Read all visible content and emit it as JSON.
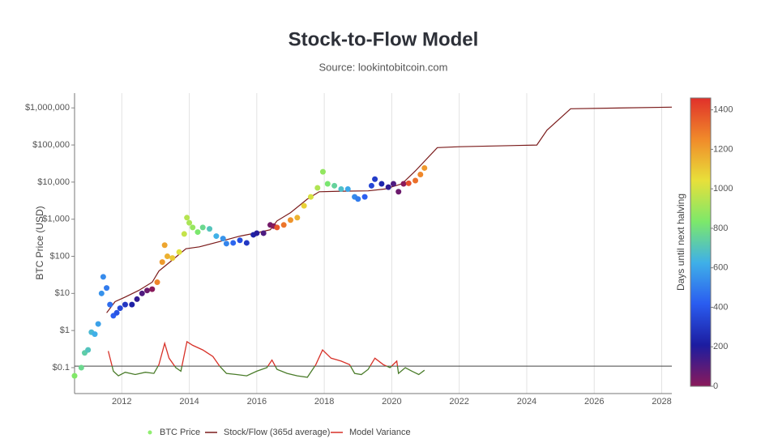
{
  "chart_data": {
    "type": "scatter",
    "title": "Stock-to-Flow Model",
    "subtitle": "Source: lookintobitcoin.com",
    "y_label": "BTC Price (USD)",
    "log_y": true,
    "grid": "x",
    "legend": "bottom",
    "xlim": [
      2010.6,
      2028.3
    ],
    "xticks": [
      2012,
      2014,
      2016,
      2018,
      2020,
      2022,
      2024,
      2026,
      2028
    ],
    "ylim": [
      0.02,
      2500000
    ],
    "yticks": [
      {
        "value": 0.1,
        "label": "$0.1"
      },
      {
        "value": 1,
        "label": "$1"
      },
      {
        "value": 10,
        "label": "$10"
      },
      {
        "value": 100,
        "label": "$100"
      },
      {
        "value": 1000,
        "label": "$1,000"
      },
      {
        "value": 10000,
        "label": "$10,000"
      },
      {
        "value": 100000,
        "label": "$100,000"
      },
      {
        "value": 1000000,
        "label": "$1,000,000"
      }
    ],
    "colorbar": {
      "title": "Days until next halving",
      "clim": [
        0,
        1460
      ],
      "ticks": [
        0,
        200,
        400,
        600,
        800,
        1000,
        1200,
        1400
      ],
      "colorscale": [
        "#8b1a5a",
        "#1c1ca0",
        "#2a5cf0",
        "#3fb0e8",
        "#7de86a",
        "#e8e03a",
        "#f08a2a",
        "#e0302a"
      ]
    },
    "baseline": 0.11,
    "series": [
      {
        "name": "BTC Price",
        "kind": "scatter",
        "color": "#90ee70",
        "x": [
          2010.6,
          2010.8,
          2010.9,
          2011.0,
          2011.1,
          2011.2,
          2011.3,
          2011.4,
          2011.45,
          2011.55,
          2011.65,
          2011.75,
          2011.85,
          2011.95,
          2012.1,
          2012.3,
          2012.45,
          2012.6,
          2012.75,
          2012.9,
          2013.05,
          2013.2,
          2013.27,
          2013.35,
          2013.5,
          2013.7,
          2013.85,
          2013.93,
          2014.0,
          2014.1,
          2014.25,
          2014.4,
          2014.6,
          2014.8,
          2015.0,
          2015.1,
          2015.3,
          2015.5,
          2015.7,
          2015.9,
          2016.0,
          2016.2,
          2016.4,
          2016.5,
          2016.6,
          2016.8,
          2017.0,
          2017.2,
          2017.4,
          2017.6,
          2017.8,
          2017.96,
          2018.1,
          2018.3,
          2018.5,
          2018.7,
          2018.9,
          2019.0,
          2019.2,
          2019.4,
          2019.5,
          2019.7,
          2019.9,
          2020.05,
          2020.2,
          2020.35,
          2020.5,
          2020.7,
          2020.85,
          2020.97
        ],
        "values": [
          0.06,
          0.1,
          0.25,
          0.3,
          0.9,
          0.8,
          1.5,
          10,
          28,
          14,
          5,
          2.5,
          3,
          4,
          5,
          5,
          7,
          10,
          12,
          13,
          20,
          70,
          200,
          100,
          90,
          130,
          400,
          1100,
          800,
          600,
          450,
          600,
          550,
          350,
          300,
          220,
          230,
          270,
          230,
          380,
          420,
          420,
          700,
          650,
          600,
          700,
          950,
          1100,
          2300,
          4000,
          7000,
          19000,
          9000,
          8000,
          6500,
          6500,
          4000,
          3500,
          4000,
          8000,
          12000,
          9000,
          7300,
          9000,
          5500,
          9000,
          9300,
          11000,
          16000,
          24000
        ],
        "days": [
          843,
          774,
          734,
          697,
          661,
          624,
          588,
          551,
          533,
          496,
          460,
          423,
          387,
          350,
          296,
          223,
          168,
          113,
          58,
          4,
          1264,
          1212,
          1186,
          1157,
          1102,
          1029,
          975,
          945,
          920,
          883,
          829,
          774,
          701,
          628,
          555,
          518,
          445,
          372,
          299,
          226,
          190,
          117,
          44,
          7,
          1372,
          1299,
          1226,
          1153,
          1080,
          1007,
          934,
          876,
          825,
          752,
          679,
          606,
          533,
          496,
          423,
          350,
          314,
          241,
          168,
          113,
          58,
          4,
          1387,
          1314,
          1259,
          1215
        ]
      },
      {
        "name": "Stock/Flow (365d average)",
        "kind": "line",
        "color": "#7a1a1a",
        "x": [
          2011.55,
          2011.8,
          2012.1,
          2012.5,
          2012.9,
          2013.1,
          2013.5,
          2013.9,
          2014.3,
          2014.9,
          2015.5,
          2016.0,
          2016.4,
          2016.6,
          2017.0,
          2017.5,
          2017.85,
          2018.5,
          2019.3,
          2019.8,
          2020.3,
          2020.7,
          2021.35,
          2022.0,
          2024.3,
          2024.6,
          2025.3,
          2028.3
        ],
        "values": [
          3,
          6,
          8,
          12,
          20,
          40,
          80,
          160,
          180,
          250,
          350,
          430,
          520,
          900,
          1500,
          3500,
          5500,
          5700,
          5800,
          6500,
          9000,
          20000,
          85000,
          90000,
          100000,
          250000,
          950000,
          1050000
        ]
      },
      {
        "name": "Model Variance",
        "kind": "variance",
        "color": "#d73027",
        "below_color": "#4a7c2a",
        "x": [
          2011.6,
          2011.75,
          2011.9,
          2012.1,
          2012.4,
          2012.7,
          2012.95,
          2013.1,
          2013.27,
          2013.4,
          2013.6,
          2013.75,
          2013.93,
          2014.1,
          2014.4,
          2014.7,
          2014.9,
          2015.1,
          2015.4,
          2015.7,
          2016.0,
          2016.3,
          2016.45,
          2016.6,
          2016.9,
          2017.2,
          2017.5,
          2017.75,
          2017.95,
          2018.2,
          2018.5,
          2018.75,
          2018.9,
          2019.1,
          2019.3,
          2019.5,
          2019.75,
          2019.95,
          2020.15,
          2020.2,
          2020.4,
          2020.6,
          2020.8,
          2020.97
        ],
        "values": [
          0.28,
          0.08,
          0.06,
          0.075,
          0.065,
          0.075,
          0.07,
          0.12,
          0.45,
          0.18,
          0.1,
          0.08,
          0.5,
          0.4,
          0.3,
          0.2,
          0.11,
          0.07,
          0.065,
          0.06,
          0.08,
          0.1,
          0.16,
          0.09,
          0.07,
          0.06,
          0.055,
          0.12,
          0.3,
          0.18,
          0.15,
          0.12,
          0.07,
          0.065,
          0.09,
          0.18,
          0.12,
          0.1,
          0.15,
          0.07,
          0.1,
          0.08,
          0.065,
          0.085
        ]
      }
    ]
  }
}
